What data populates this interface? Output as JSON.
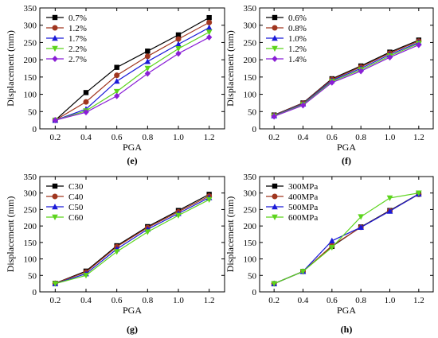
{
  "chart_data": [
    {
      "type": "line",
      "panel_label": "(e)",
      "xlabel": "PGA",
      "ylabel": "Displacement (mm)",
      "x": [
        0.2,
        0.4,
        0.6,
        0.8,
        1.0,
        1.2
      ],
      "x_ticks": [
        "0.2",
        "0.4",
        "0.6",
        "0.8",
        "1.0",
        "1.2"
      ],
      "xlim": [
        0.1,
        1.3
      ],
      "ylim": [
        0,
        350
      ],
      "y_ticks": [
        "0",
        "50",
        "100",
        "150",
        "200",
        "250",
        "300",
        "350"
      ],
      "legend_position": "top-left",
      "grid": false,
      "series": [
        {
          "name": "0.7%",
          "color": "#000000",
          "marker": "square",
          "values": [
            25,
            105,
            178,
            225,
            272,
            322
          ]
        },
        {
          "name": "1.2%",
          "color": "#a0361f",
          "marker": "circle",
          "values": [
            25,
            78,
            155,
            210,
            260,
            308
          ]
        },
        {
          "name": "1.7%",
          "color": "#1a1ad8",
          "marker": "triangle-up",
          "values": [
            25,
            57,
            138,
            195,
            245,
            293
          ]
        },
        {
          "name": "2.2%",
          "color": "#5cd41c",
          "marker": "triangle-down",
          "values": [
            25,
            52,
            108,
            175,
            232,
            280
          ]
        },
        {
          "name": "2.7%",
          "color": "#8a1fd6",
          "marker": "diamond",
          "values": [
            25,
            48,
            95,
            160,
            218,
            265
          ]
        }
      ]
    },
    {
      "type": "line",
      "panel_label": "(f)",
      "xlabel": "PGA",
      "ylabel": "Displacement (mm)",
      "x": [
        0.2,
        0.4,
        0.6,
        0.8,
        1.0,
        1.2
      ],
      "x_ticks": [
        "0.2",
        "0.4",
        "0.6",
        "0.8",
        "1.0",
        "1.2"
      ],
      "xlim": [
        0.1,
        1.3
      ],
      "ylim": [
        0,
        350
      ],
      "y_ticks": [
        "0",
        "50",
        "100",
        "150",
        "200",
        "250",
        "300",
        "350"
      ],
      "legend_position": "top-left",
      "grid": false,
      "series": [
        {
          "name": "0.6%",
          "color": "#000000",
          "marker": "square",
          "values": [
            40,
            75,
            145,
            182,
            222,
            257
          ]
        },
        {
          "name": "0.8%",
          "color": "#a0361f",
          "marker": "circle",
          "values": [
            39,
            74,
            143,
            179,
            219,
            254
          ]
        },
        {
          "name": "1.0%",
          "color": "#1a1ad8",
          "marker": "triangle-up",
          "values": [
            38,
            72,
            140,
            175,
            215,
            250
          ]
        },
        {
          "name": "1.2%",
          "color": "#5cd41c",
          "marker": "triangle-down",
          "values": [
            37,
            70,
            137,
            171,
            211,
            247
          ]
        },
        {
          "name": "1.4%",
          "color": "#8a1fd6",
          "marker": "diamond",
          "values": [
            36,
            68,
            134,
            167,
            207,
            243
          ]
        }
      ]
    },
    {
      "type": "line",
      "panel_label": "(g)",
      "xlabel": "PGA",
      "ylabel": "Displacement (mm)",
      "x": [
        0.2,
        0.4,
        0.6,
        0.8,
        1.0,
        1.2
      ],
      "x_ticks": [
        "0.2",
        "0.4",
        "0.6",
        "0.8",
        "1.0",
        "1.2"
      ],
      "xlim": [
        0.1,
        1.3
      ],
      "ylim": [
        0,
        350
      ],
      "y_ticks": [
        "0",
        "50",
        "100",
        "150",
        "200",
        "250",
        "300",
        "350"
      ],
      "legend_position": "top-left",
      "grid": false,
      "series": [
        {
          "name": "C30",
          "color": "#000000",
          "marker": "square",
          "values": [
            26,
            63,
            140,
            198,
            247,
            296
          ]
        },
        {
          "name": "C40",
          "color": "#a0361f",
          "marker": "circle",
          "values": [
            26,
            60,
            137,
            195,
            243,
            291
          ]
        },
        {
          "name": "C50",
          "color": "#1a1ad8",
          "marker": "triangle-up",
          "values": [
            25,
            55,
            130,
            190,
            238,
            286
          ]
        },
        {
          "name": "C60",
          "color": "#5cd41c",
          "marker": "triangle-down",
          "values": [
            25,
            50,
            122,
            182,
            232,
            280
          ]
        }
      ]
    },
    {
      "type": "line",
      "panel_label": "(h)",
      "xlabel": "PGA",
      "ylabel": "Displacement (mm)",
      "x": [
        0.2,
        0.4,
        0.6,
        0.8,
        1.0,
        1.2
      ],
      "x_ticks": [
        "0.2",
        "0.4",
        "0.6",
        "0.8",
        "1.0",
        "1.2"
      ],
      "xlim": [
        0.1,
        1.3
      ],
      "ylim": [
        0,
        350
      ],
      "y_ticks": [
        "0",
        "50",
        "100",
        "150",
        "200",
        "250",
        "300",
        "350"
      ],
      "legend_position": "top-left",
      "grid": false,
      "series": [
        {
          "name": "300MPa",
          "color": "#000000",
          "marker": "square",
          "values": [
            25,
            62,
            138,
            197,
            247,
            297
          ]
        },
        {
          "name": "400MPa",
          "color": "#a0361f",
          "marker": "circle",
          "values": [
            25,
            62,
            140,
            196,
            246,
            296
          ]
        },
        {
          "name": "500MPa",
          "color": "#1a1ad8",
          "marker": "triangle-up",
          "values": [
            25,
            62,
            155,
            196,
            245,
            297
          ]
        },
        {
          "name": "600MPa",
          "color": "#5cd41c",
          "marker": "triangle-down",
          "values": [
            25,
            62,
            135,
            228,
            285,
            300
          ]
        }
      ]
    }
  ]
}
